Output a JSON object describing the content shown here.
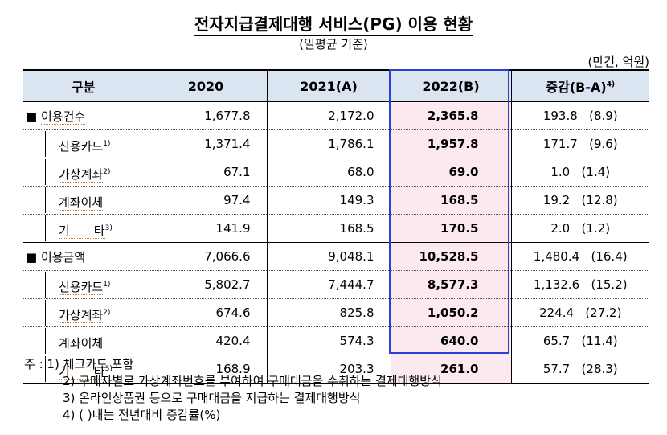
{
  "title": "전자지급결제대행 서비스(PG) 이용 현황",
  "subtitle": "(일평균 기준)",
  "unit": "(만건, 억원)",
  "headers": {
    "category": "구분",
    "y2020": "2020",
    "y2021": "2021(A)",
    "y2022": "2022(B)",
    "change": "증감(B-A)",
    "change_sup": "4)"
  },
  "rows": [
    {
      "label": "이용건수",
      "bullet": "■",
      "sup": "",
      "v2020": "1,677.8",
      "v2021": "2,172.0",
      "v2022": "2,365.8",
      "change": "193.8",
      "rate": "(8.9)"
    },
    {
      "label": "신용카드",
      "sup": "1)",
      "v2020": "1,371.4",
      "v2021": "1,786.1",
      "v2022": "1,957.8",
      "change": "171.7",
      "rate": "(9.6)"
    },
    {
      "label": "가상계좌",
      "sup": "2)",
      "v2020": "67.1",
      "v2021": "68.0",
      "v2022": "69.0",
      "change": "1.0",
      "rate": "(1.4)"
    },
    {
      "label": "계좌이체",
      "sup": "",
      "v2020": "97.4",
      "v2021": "149.3",
      "v2022": "168.5",
      "change": "19.2",
      "rate": "(12.8)"
    },
    {
      "label": "기　　타",
      "sup": "3)",
      "v2020": "141.9",
      "v2021": "168.5",
      "v2022": "170.5",
      "change": "2.0",
      "rate": "(1.2)"
    },
    {
      "label": "이용금액",
      "bullet": "■",
      "sup": "",
      "v2020": "7,066.6",
      "v2021": "9,048.1",
      "v2022": "10,528.5",
      "change": "1,480.4",
      "rate": "(16.4)"
    },
    {
      "label": "신용카드",
      "sup": "1)",
      "v2020": "5,802.7",
      "v2021": "7,444.7",
      "v2022": "8,577.3",
      "change": "1,132.6",
      "rate": "(15.2)"
    },
    {
      "label": "가상계좌",
      "sup": "2)",
      "v2020": "674.6",
      "v2021": "825.8",
      "v2022": "1,050.2",
      "change": "224.4",
      "rate": "(27.2)"
    },
    {
      "label": "계좌이체",
      "sup": "",
      "v2020": "420.4",
      "v2021": "574.3",
      "v2022": "640.0",
      "change": "65.7",
      "rate": "(11.4)"
    },
    {
      "label": "기　　타",
      "sup": "3)",
      "v2020": "168.9",
      "v2021": "203.3",
      "v2022": "261.0",
      "change": "57.7",
      "rate": "(28.3)"
    }
  ],
  "notes": {
    "prefix": "주 :",
    "n1": "1) 체크카드 포함",
    "n2": "2) 구매자별로 가상계좌번호를 부여하여 구매대금을 수취하는 결제대행방식",
    "n3": "3) 온라인상품권 등으로 구매대금을 지급하는 결제대행방식",
    "n4": "4) (  )내는 전년대비 증감률(%)"
  }
}
